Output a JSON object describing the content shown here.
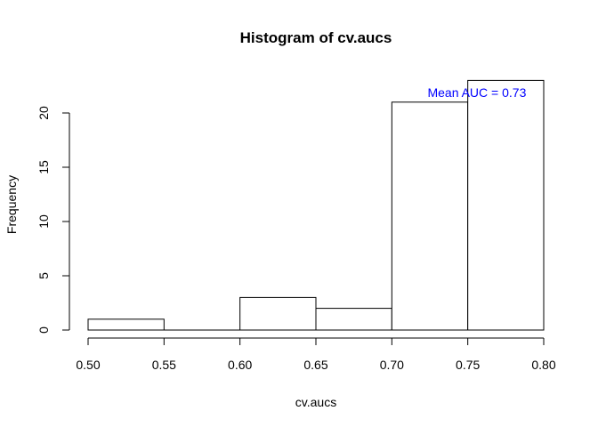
{
  "chart_data": {
    "type": "bar",
    "title": "Histogram of cv.aucs",
    "xlabel": "cv.aucs",
    "ylabel": "Frequency",
    "bins": [
      {
        "start": 0.5,
        "end": 0.55,
        "count": 1
      },
      {
        "start": 0.55,
        "end": 0.6,
        "count": 0
      },
      {
        "start": 0.6,
        "end": 0.65,
        "count": 3
      },
      {
        "start": 0.65,
        "end": 0.7,
        "count": 2
      },
      {
        "start": 0.7,
        "end": 0.75,
        "count": 21
      },
      {
        "start": 0.75,
        "end": 0.8,
        "count": 23
      }
    ],
    "xlim": [
      0.5,
      0.8
    ],
    "ylim": [
      0,
      23
    ],
    "x_ticks": [
      "0.50",
      "0.55",
      "0.60",
      "0.65",
      "0.70",
      "0.75",
      "0.80"
    ],
    "y_ticks": [
      "0",
      "5",
      "10",
      "15",
      "20"
    ],
    "annotation": {
      "text": "Mean AUC =  0.73",
      "x": 0.756,
      "y": 21.9,
      "color": "#0000ff"
    },
    "grid": false,
    "legend": "none"
  }
}
